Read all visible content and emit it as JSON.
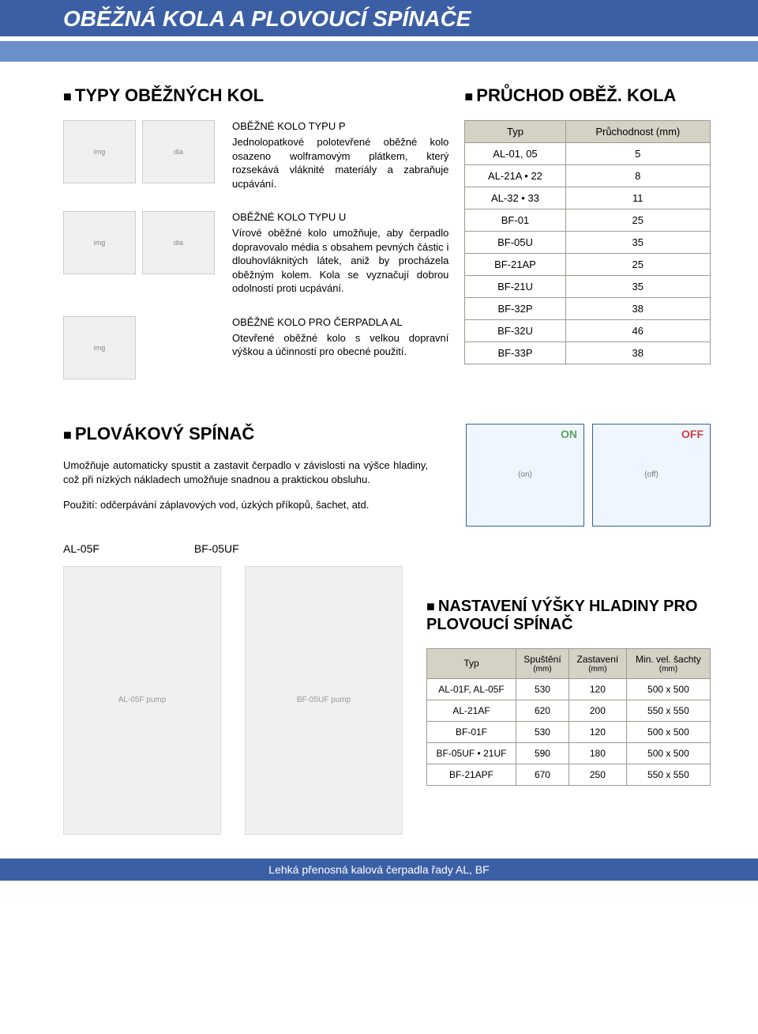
{
  "header": "OBĚŽNÁ KOLA A PLOVOUCÍ SPÍNAČE",
  "sections": {
    "types_title": "TYPY OBĚŽNÝCH KOL",
    "through_title": "PRŮCHOD OBĚŽ. KOLA",
    "float_title": "PLOVÁKOVÝ SPÍNAČ",
    "level_title": "NASTAVENÍ VÝŠKY HLADINY PRO PLOVOUCÍ SPÍNAČ"
  },
  "kolo_blocks": [
    {
      "title": "OBĚŽNÉ KOLO TYPU P",
      "desc": "Jednolopatkové polotevřené oběžné kolo osazeno wolframovým plátkem, který rozsekává vláknité materiály a zabraňuje ucpávání."
    },
    {
      "title": "OBĚŽNÉ KOLO TYPU U",
      "desc": "Vírové oběžné kolo umožňuje, aby čerpadlo dopravovalo média s obsahem pevných částic i dlouhovláknitých látek, aniž by procházela oběžným kolem. Kola se vyznačují dobrou odolností proti ucpávání."
    },
    {
      "title": "OBĚŽNÉ KOLO PRO ČERPADLA AL",
      "desc": "Otevřené oběžné kolo s velkou dopravní výškou a účinností pro obecné použití."
    }
  ],
  "through_table": {
    "headers": [
      "Typ",
      "Průchodnost (mm)"
    ],
    "rows": [
      [
        "AL-01, 05",
        "5"
      ],
      [
        "AL-21A • 22",
        "8"
      ],
      [
        "AL-32 • 33",
        "11"
      ],
      [
        "BF-01",
        "25"
      ],
      [
        "BF-05U",
        "35"
      ],
      [
        "BF-21AP",
        "25"
      ],
      [
        "BF-21U",
        "35"
      ],
      [
        "BF-32P",
        "38"
      ],
      [
        "BF-32U",
        "46"
      ],
      [
        "BF-33P",
        "38"
      ]
    ]
  },
  "float_text": {
    "p1": "Umožňuje automaticky spustit a zastavit čerpadlo v závislosti na výšce hladiny, což při nízkých nákladech umožňuje snadnou a praktickou obsluhu.",
    "p2": "Použití: odčerpávání záplavových vod, úzkých příkopů, šachet, atd.",
    "on": "ON",
    "off": "OFF",
    "model_a": "AL-05F",
    "model_b": "BF-05UF"
  },
  "level_table": {
    "headers": [
      "Typ",
      "Spuštění",
      "Zastavení",
      "Min. vel. šachty"
    ],
    "unit": "(mm)",
    "rows": [
      [
        "AL-01F, AL-05F",
        "530",
        "120",
        "500 x 500"
      ],
      [
        "AL-21AF",
        "620",
        "200",
        "550 x 550"
      ],
      [
        "BF-01F",
        "530",
        "120",
        "500 x 500"
      ],
      [
        "BF-05UF • 21UF",
        "590",
        "180",
        "500 x 500"
      ],
      [
        "BF-21APF",
        "670",
        "250",
        "550 x 550"
      ]
    ]
  },
  "footer": "Lehká přenosná kalová čerpadla řady AL, BF"
}
